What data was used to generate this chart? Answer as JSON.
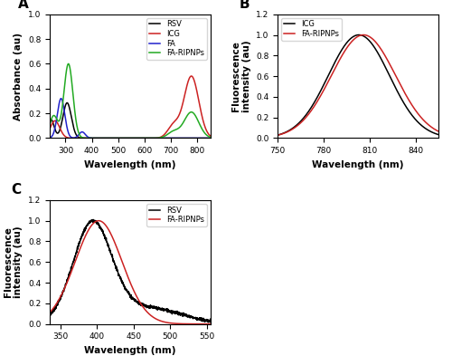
{
  "panel_A": {
    "xlabel": "Wavelength (nm)",
    "ylabel": "Absorbance (au)",
    "xlim": [
      240,
      850
    ],
    "ylim": [
      0,
      1.0
    ],
    "yticks": [
      0.0,
      0.2,
      0.4,
      0.6,
      0.8,
      1.0
    ],
    "xticks": [
      300,
      400,
      500,
      600,
      700,
      800
    ],
    "legend": [
      "RSV",
      "ICG",
      "FA",
      "FA-RIPNPs"
    ],
    "colors": {
      "RSV": "#000000",
      "ICG": "#cc2222",
      "FA": "#2222cc",
      "FA-RIPNPs": "#22aa22"
    }
  },
  "panel_B": {
    "xlabel": "Wavelength (nm)",
    "ylabel": "Fluorescence\nintensity (au)",
    "xlim": [
      750,
      855
    ],
    "ylim": [
      0,
      1.2
    ],
    "yticks": [
      0.0,
      0.2,
      0.4,
      0.6,
      0.8,
      1.0,
      1.2
    ],
    "xticks": [
      750,
      780,
      810,
      840
    ],
    "legend": [
      "ICG",
      "FA-RIPNPs"
    ],
    "colors": {
      "ICG": "#000000",
      "FA-RIPNPs": "#cc2222"
    }
  },
  "panel_C": {
    "xlabel": "Wavelength (nm)",
    "ylabel": "Fluorescence\nintensity (au)",
    "xlim": [
      335,
      555
    ],
    "ylim": [
      0,
      1.2
    ],
    "yticks": [
      0.0,
      0.2,
      0.4,
      0.6,
      0.8,
      1.0,
      1.2
    ],
    "xticks": [
      350,
      400,
      450,
      500,
      550
    ],
    "legend": [
      "RSV",
      "FA-RIPNPs"
    ],
    "colors": {
      "RSV": "#000000",
      "FA-RIPNPs": "#cc2222"
    }
  }
}
